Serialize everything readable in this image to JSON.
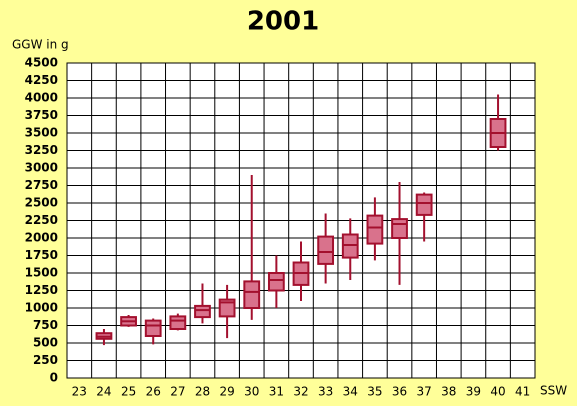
{
  "chart_data": {
    "type": "box",
    "title": "2001",
    "y_label": "GGW in g",
    "x_label": "SSW",
    "categories": [
      "23",
      "24",
      "25",
      "26",
      "27",
      "28",
      "29",
      "30",
      "31",
      "32",
      "33",
      "34",
      "35",
      "36",
      "37",
      "38",
      "39",
      "40",
      "41"
    ],
    "series": [
      {
        "color": "#d9728c",
        "edge_color": "#a3102e",
        "low": [
          null,
          470,
          730,
          480,
          680,
          780,
          570,
          830,
          1000,
          1100,
          1350,
          1400,
          1680,
          1330,
          1950,
          null,
          null,
          3250,
          null
        ],
        "q1": [
          null,
          560,
          750,
          600,
          700,
          870,
          880,
          1000,
          1250,
          1330,
          1630,
          1720,
          1920,
          2000,
          2330,
          null,
          null,
          3300,
          null
        ],
        "median": [
          null,
          590,
          810,
          750,
          820,
          970,
          1080,
          1230,
          1400,
          1500,
          1800,
          1900,
          2150,
          2200,
          2500,
          null,
          null,
          3500,
          null
        ],
        "q3": [
          null,
          640,
          870,
          820,
          880,
          1030,
          1120,
          1380,
          1500,
          1650,
          2020,
          2050,
          2320,
          2270,
          2620,
          null,
          null,
          3700,
          null
        ],
        "high": [
          null,
          700,
          900,
          850,
          920,
          1350,
          1330,
          2900,
          1750,
          1950,
          2350,
          2280,
          2580,
          2800,
          2650,
          null,
          null,
          4050,
          null
        ]
      }
    ],
    "ylim": [
      0,
      4500
    ],
    "yticks": [
      0,
      250,
      500,
      750,
      1000,
      1250,
      1500,
      1750,
      2000,
      2250,
      2500,
      2750,
      3000,
      3250,
      3500,
      3750,
      4000,
      4250,
      4500
    ],
    "grid": true
  }
}
